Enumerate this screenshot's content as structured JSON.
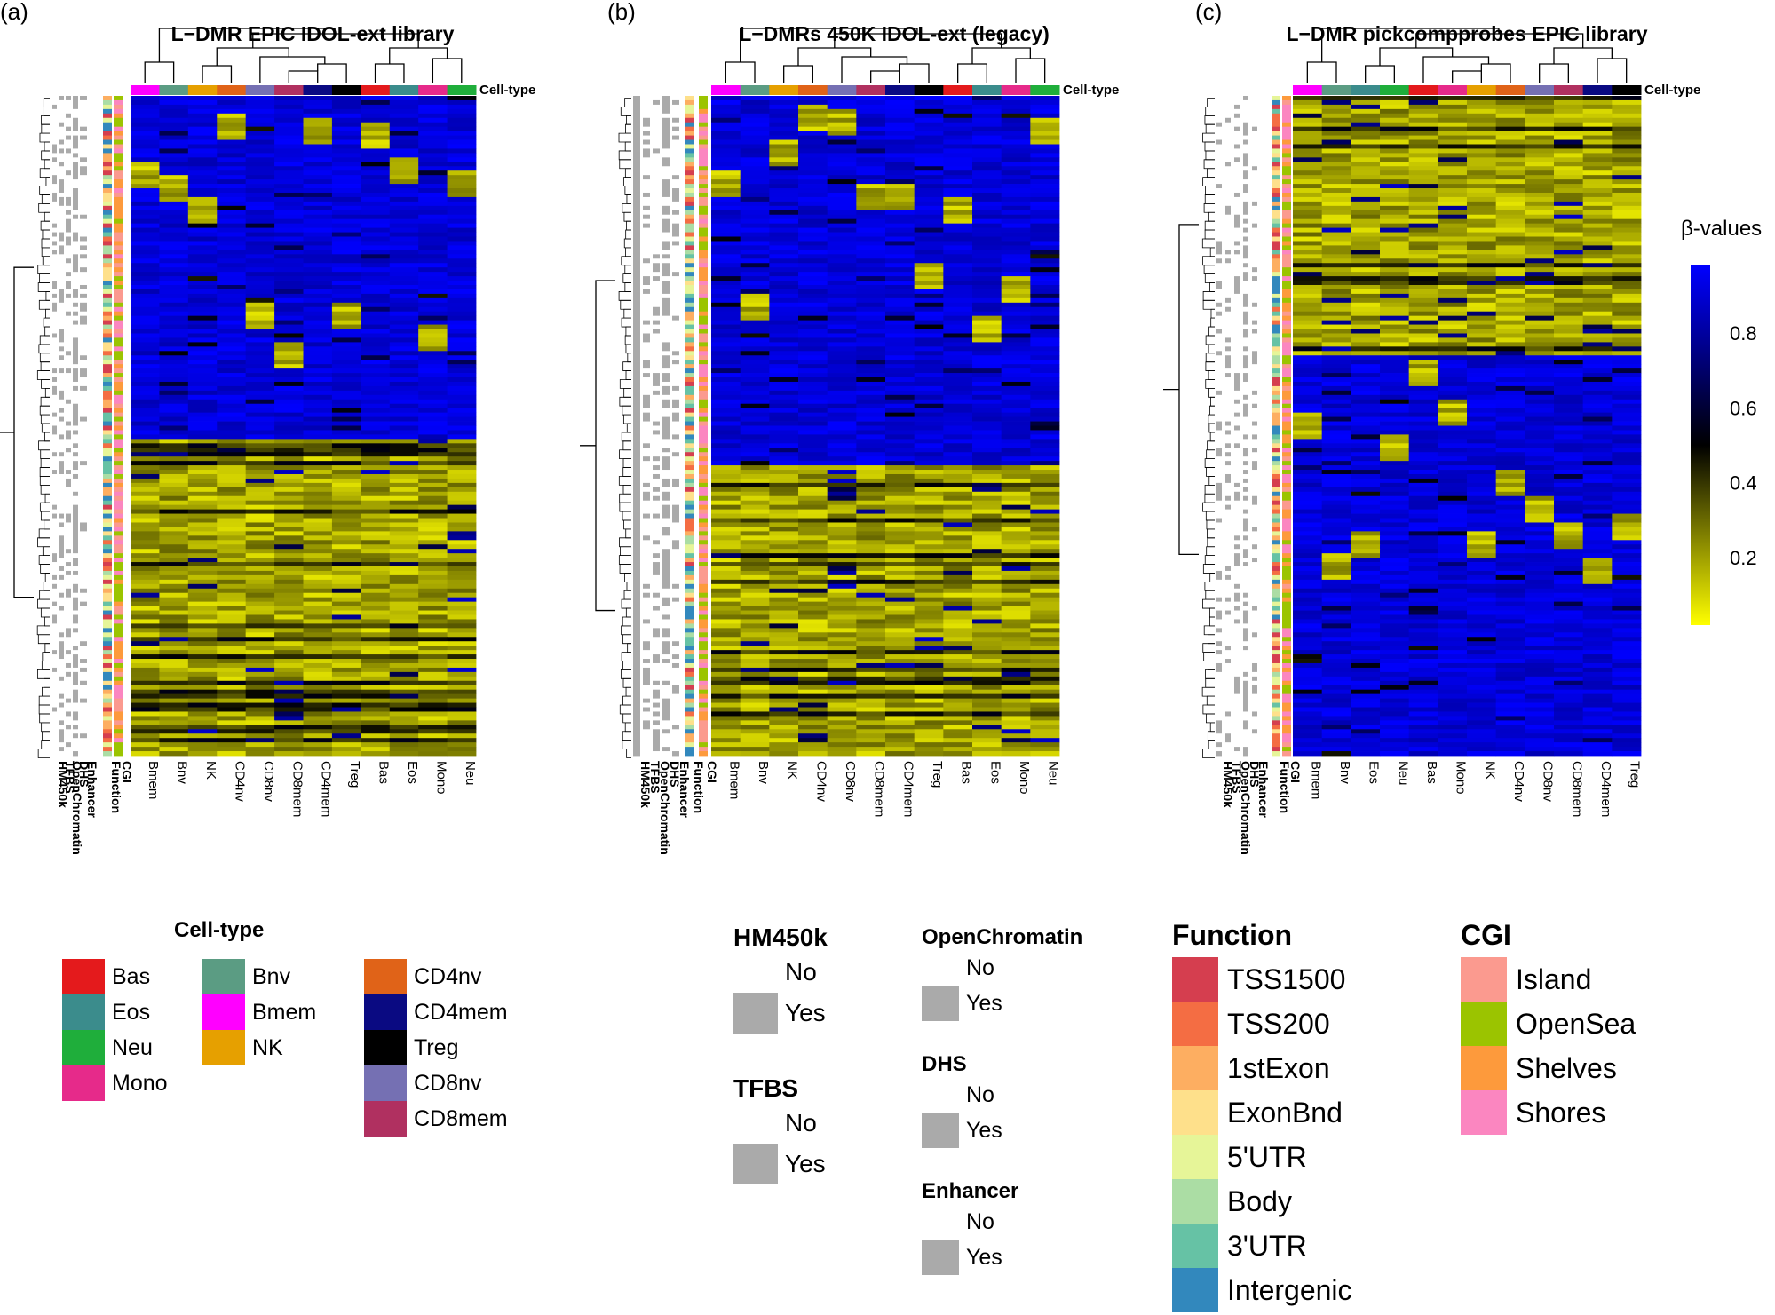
{
  "chart_data": [
    {
      "type": "heatmap",
      "panel_label": "(a)",
      "title": "L−DMR EPIC IDOL-ext library",
      "row_annotations": [
        "HM450k",
        "TFBS",
        "OpenChromatin",
        "DHS",
        "Enhancer",
        "Function",
        "CGI"
      ],
      "columns": [
        "Bmem",
        "Bnv",
        "NK",
        "CD4nv",
        "CD8nv",
        "CD8mem",
        "CD4mem",
        "Treg",
        "Bas",
        "Eos",
        "Mono",
        "Neu"
      ],
      "column_annotation_label": "Cell-type",
      "upper_block": "high β (blue) with cell-type specific low blocks",
      "lower_block": "low β (yellow)"
    },
    {
      "type": "heatmap",
      "panel_label": "(b)",
      "title": "L−DMRs 450K IDOL-ext (legacy)",
      "row_annotations": [
        "HM450k",
        "TFBS",
        "OpenChromatin",
        "DHS",
        "Enhancer",
        "Function",
        "CGI"
      ],
      "columns": [
        "Bmem",
        "Bnv",
        "NK",
        "CD4nv",
        "CD8nv",
        "CD8mem",
        "CD4mem",
        "Treg",
        "Bas",
        "Eos",
        "Mono",
        "Neu"
      ],
      "column_annotation_label": "Cell-type"
    },
    {
      "type": "heatmap",
      "panel_label": "(c)",
      "title": "L−DMR pickcompprobes EPIC library",
      "row_annotations": [
        "HM450k",
        "TFBS",
        "OpenChromatin",
        "DHS",
        "Enhancer",
        "Function",
        "CGI"
      ],
      "columns": [
        "Bmem",
        "Bnv",
        "Eos",
        "Neu",
        "Bas",
        "Mono",
        "NK",
        "CD4nv",
        "CD8nv",
        "CD8mem",
        "CD4mem",
        "Treg"
      ],
      "column_annotation_label": "Cell-type"
    }
  ],
  "color_scale": {
    "title": "β-values",
    "ticks": [
      "0.8",
      "0.6",
      "0.4",
      "0.2"
    ],
    "tick_values": [
      0.8,
      0.6,
      0.4,
      0.2
    ],
    "range": [
      0.02,
      0.98
    ],
    "low_color": "#ffff00",
    "mid_color": "#000000",
    "high_color": "#0000ff"
  },
  "celltype_legend": {
    "title": "Cell-type",
    "columns": [
      [
        {
          "label": "Bas",
          "color": "#e41a1c"
        },
        {
          "label": "Eos",
          "color": "#3b8c8c"
        },
        {
          "label": "Neu",
          "color": "#1fae3b"
        },
        {
          "label": "Mono",
          "color": "#e62a8a"
        }
      ],
      [
        {
          "label": "Bnv",
          "color": "#5b9c83"
        },
        {
          "label": "Bmem",
          "color": "#ff00ff"
        },
        {
          "label": "NK",
          "color": "#e6a000"
        }
      ],
      [
        {
          "label": "CD4nv",
          "color": "#e06318"
        },
        {
          "label": "CD4mem",
          "color": "#0a0a82"
        },
        {
          "label": "Treg",
          "color": "#000000"
        },
        {
          "label": "CD8nv",
          "color": "#7570b3"
        },
        {
          "label": "CD8mem",
          "color": "#b03060"
        }
      ]
    ]
  },
  "binary_legends": [
    {
      "title": "HM450k",
      "no": "No",
      "yes": "Yes"
    },
    {
      "title": "TFBS",
      "no": "No",
      "yes": "Yes"
    },
    {
      "title": "OpenChromatin",
      "no": "No",
      "yes": "Yes"
    },
    {
      "title": "DHS",
      "no": "No",
      "yes": "Yes"
    },
    {
      "title": "Enhancer",
      "no": "No",
      "yes": "Yes"
    }
  ],
  "function_legend": {
    "title": "Function",
    "items": [
      {
        "label": "TSS1500",
        "color": "#d53e4f"
      },
      {
        "label": "TSS200",
        "color": "#f46d43"
      },
      {
        "label": "1stExon",
        "color": "#fdae61"
      },
      {
        "label": "ExonBnd",
        "color": "#fee08b"
      },
      {
        "label": "5'UTR",
        "color": "#e6f598"
      },
      {
        "label": "Body",
        "color": "#abdda4"
      },
      {
        "label": "3'UTR",
        "color": "#66c2a5"
      },
      {
        "label": "Intergenic",
        "color": "#3288bd"
      }
    ]
  },
  "cgi_legend": {
    "title": "CGI",
    "items": [
      {
        "label": "Island",
        "color": "#fb9a8f"
      },
      {
        "label": "OpenSea",
        "color": "#9bc400"
      },
      {
        "label": "Shelves",
        "color": "#fd9a3c"
      },
      {
        "label": "Shores",
        "color": "#fb86c0"
      }
    ]
  }
}
